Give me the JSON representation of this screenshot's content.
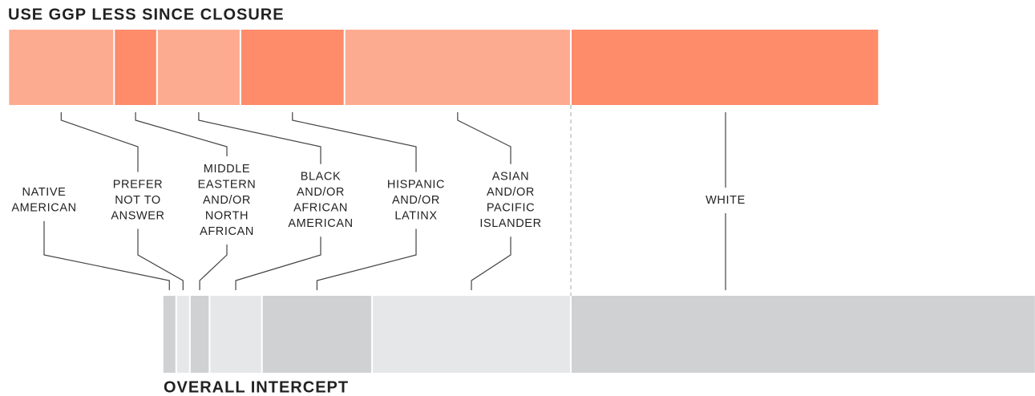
{
  "chart_data": {
    "type": "bar",
    "top_title": "USE GGP LESS SINCE CLOSURE",
    "bottom_title": "OVERALL INTERCEPT",
    "series": [
      {
        "name": [
          "NATIVE",
          "AMERICAN"
        ],
        "colors": [
          "#fdab90",
          "#d0d1d3"
        ],
        "values": [
          0,
          1.4
        ]
      },
      {
        "name": [
          "PREFER",
          "NOT TO",
          "ANSWER"
        ],
        "colors": [
          "#fdab90",
          "#e6e7e9"
        ],
        "values": [
          12.1,
          1.4
        ]
      },
      {
        "name": [
          "MIDDLE",
          "EASTERN",
          "AND/OR",
          "NORTH",
          "AFRICAN"
        ],
        "colors": [
          "#fe8b6a",
          "#d0d1d3"
        ],
        "values": [
          4.8,
          2.1
        ]
      },
      {
        "name": [
          "BLACK",
          "AND/OR",
          "AFRICAN",
          "AMERICAN"
        ],
        "colors": [
          "#fdab90",
          "#e6e7e9"
        ],
        "values": [
          9.5,
          5.9
        ]
      },
      {
        "name": [
          "HISPANIC",
          "AND/OR",
          "LATINX"
        ],
        "colors": [
          "#fe8b6a",
          "#d0d1d3"
        ],
        "values": [
          11.9,
          12.6
        ]
      },
      {
        "name": [
          "ASIAN",
          "AND/OR",
          "PACIFIC",
          "ISLANDER"
        ],
        "colors": [
          "#fdab90",
          "#e6e7e9"
        ],
        "values": [
          26.1,
          22.9
        ]
      },
      {
        "name": [
          "WHITE"
        ],
        "colors": [
          "#fe8b6a",
          "#d0d1d3"
        ],
        "values": [
          35.6,
          53.8
        ]
      }
    ]
  }
}
